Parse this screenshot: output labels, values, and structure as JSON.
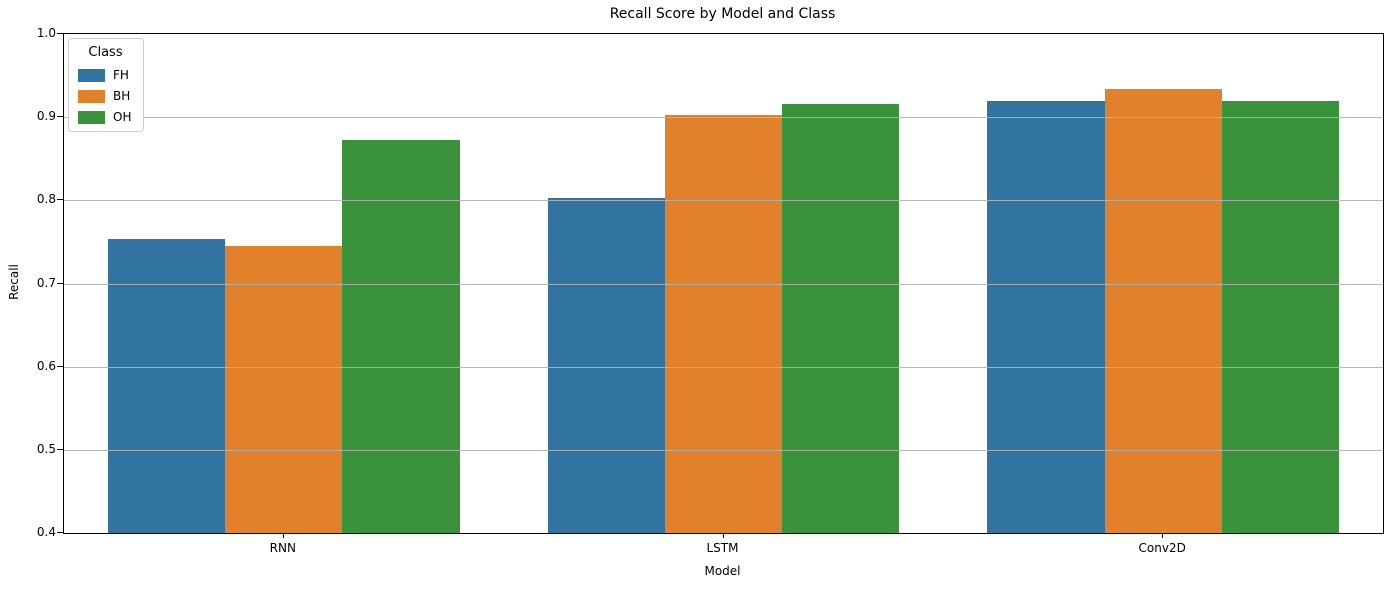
{
  "chart_data": {
    "type": "bar",
    "title": "Recall Score by Model and Class",
    "xlabel": "Model",
    "ylabel": "Recall",
    "categories": [
      "RNN",
      "LSTM",
      "Conv2D"
    ],
    "series": [
      {
        "name": "FH",
        "color": "#3274a1",
        "values": [
          0.753,
          0.803,
          0.92
        ]
      },
      {
        "name": "BH",
        "color": "#e1812c",
        "values": [
          0.745,
          0.903,
          0.934
        ]
      },
      {
        "name": "OH",
        "color": "#3a923a",
        "values": [
          0.873,
          0.916,
          0.919
        ]
      }
    ],
    "ylim": [
      0.4,
      1.0
    ],
    "yticks": [
      0.4,
      0.5,
      0.6,
      0.7,
      0.8,
      0.9,
      1.0
    ],
    "ytick_format_decimals": 1,
    "grid": "horizontal",
    "grid_color": "#b0b0b0",
    "spine_color": "#000000",
    "legend": {
      "title": "Class",
      "position": "upper-left"
    }
  }
}
